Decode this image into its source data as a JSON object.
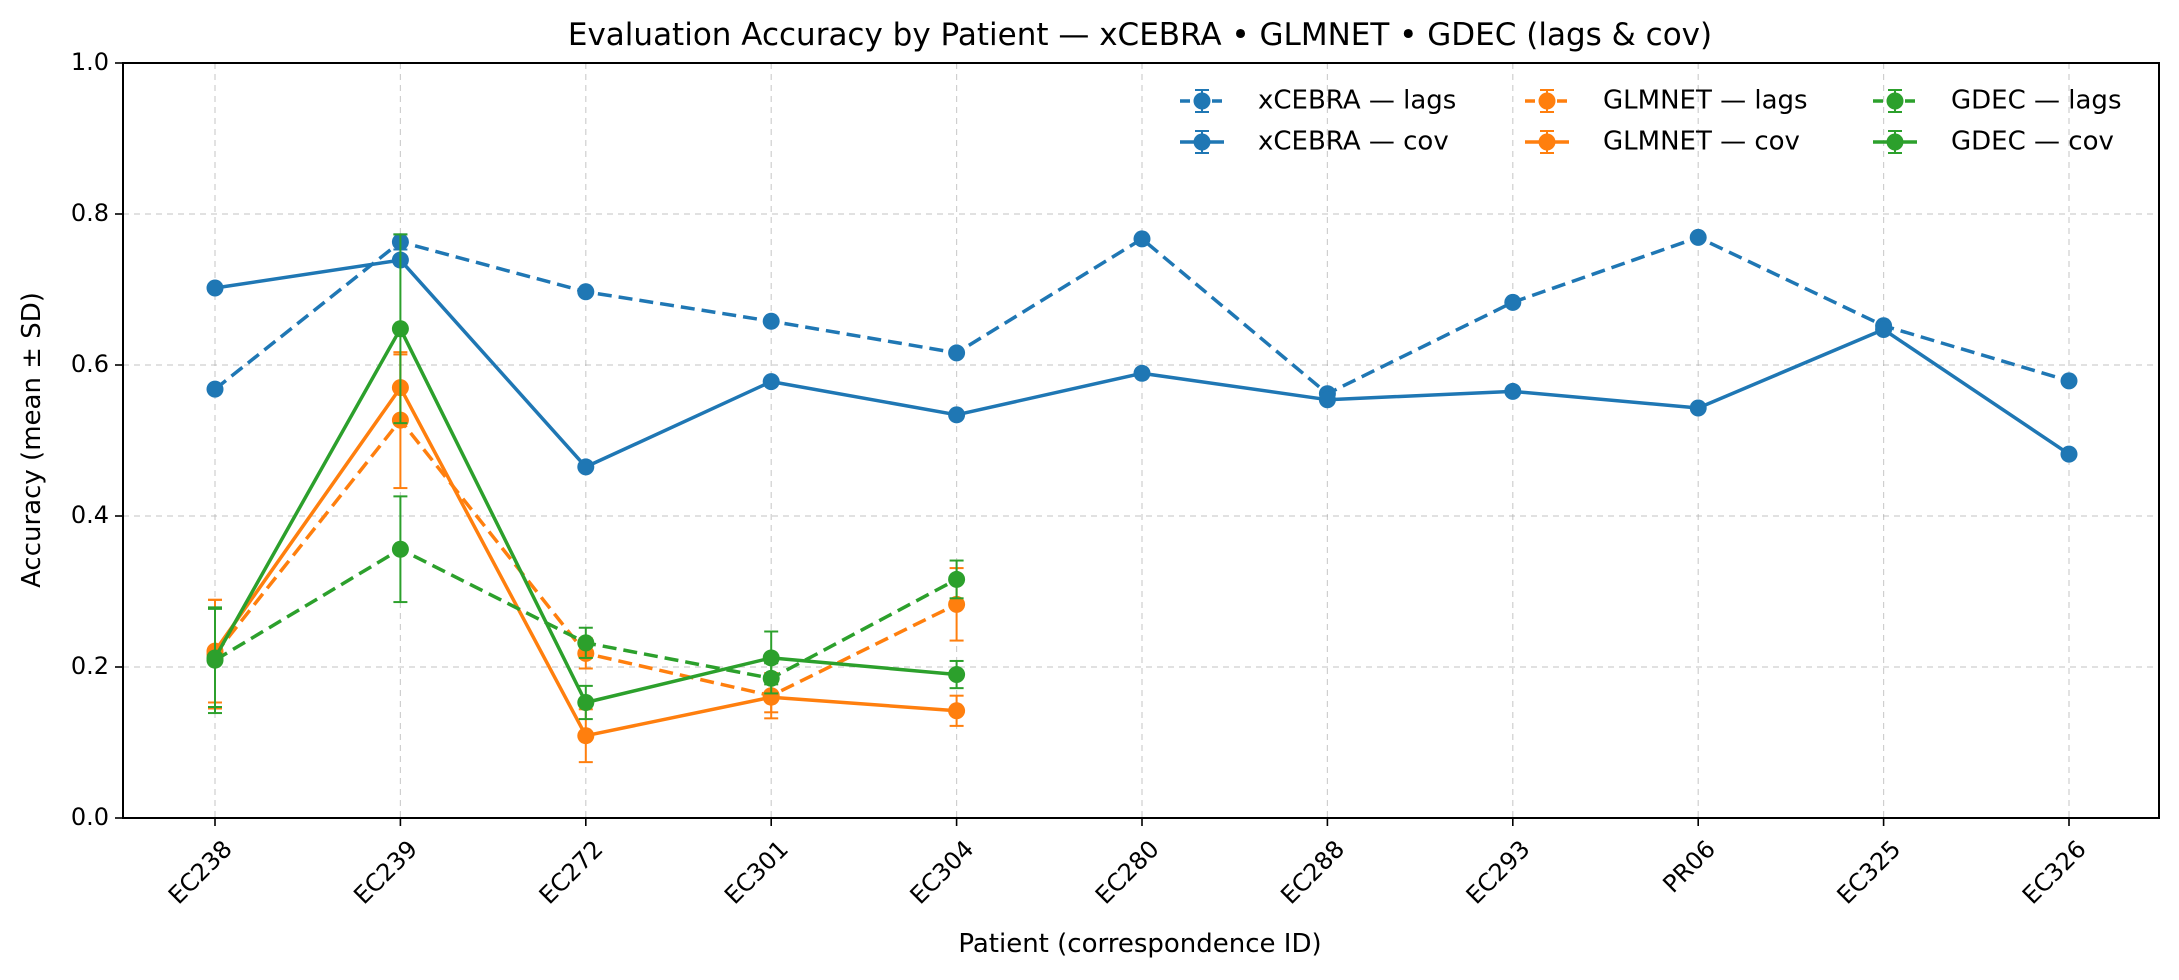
{
  "chart_data": {
    "type": "line",
    "title": "Evaluation Accuracy by Patient — xCEBRA • GLMNET • GDEC (lags & cov)",
    "xlabel": "Patient (correspondence ID)",
    "ylabel": "Accuracy (mean ± SD)",
    "categories": [
      "EC238",
      "EC239",
      "EC272",
      "EC301",
      "EC304",
      "EC280",
      "EC288",
      "EC293",
      "PR06",
      "EC325",
      "EC326"
    ],
    "ylim": [
      0,
      1.0
    ],
    "yticks": [
      "0.0",
      "0.2",
      "0.4",
      "0.6",
      "0.8",
      "1.0"
    ],
    "grid": true,
    "legend_position": "top-right",
    "series": [
      {
        "name": "xCEBRA — lags",
        "color": "#1f77b4",
        "style": "dashed",
        "values": [
          0.568,
          0.763,
          0.697,
          0.658,
          0.616,
          0.767,
          0.562,
          0.683,
          0.769,
          0.652,
          0.579
        ],
        "errors": [
          0,
          0.01,
          0,
          0,
          0,
          0,
          0,
          0,
          0,
          0,
          0
        ]
      },
      {
        "name": "xCEBRA — cov",
        "color": "#1f77b4",
        "style": "solid",
        "values": [
          0.702,
          0.739,
          0.465,
          0.578,
          0.534,
          0.589,
          0.554,
          0.565,
          0.543,
          0.647,
          0.482
        ],
        "errors": [
          0,
          0,
          0,
          0,
          0,
          0,
          0,
          0,
          0,
          0,
          0
        ]
      },
      {
        "name": "GLMNET — lags",
        "color": "#ff7f0e",
        "style": "dashed",
        "values": [
          0.217,
          0.527,
          0.218,
          0.162,
          0.283,
          null,
          null,
          null,
          null,
          null,
          null
        ],
        "errors": [
          0.072,
          0.09,
          0.02,
          0.03,
          0.048,
          null,
          null,
          null,
          null,
          null,
          null
        ]
      },
      {
        "name": "GLMNET — cov",
        "color": "#ff7f0e",
        "style": "solid",
        "values": [
          0.221,
          0.57,
          0.109,
          0.16,
          0.142,
          null,
          null,
          null,
          null,
          null,
          null
        ],
        "errors": [
          0.068,
          0.044,
          0.035,
          0.02,
          0.02,
          null,
          null,
          null,
          null,
          null,
          null
        ]
      },
      {
        "name": "GDEC — lags",
        "color": "#2ca02c",
        "style": "dashed",
        "values": [
          0.209,
          0.356,
          0.232,
          0.185,
          0.316,
          null,
          null,
          null,
          null,
          null,
          null
        ],
        "errors": [
          0.07,
          0.07,
          0.02,
          0.02,
          0.025,
          null,
          null,
          null,
          null,
          null,
          null
        ]
      },
      {
        "name": "GDEC — cov",
        "color": "#2ca02c",
        "style": "solid",
        "values": [
          0.212,
          0.648,
          0.153,
          0.212,
          0.19,
          null,
          null,
          null,
          null,
          null,
          null
        ],
        "errors": [
          0.065,
          0.125,
          0.022,
          0.035,
          0.018,
          null,
          null,
          null,
          null,
          null,
          null
        ]
      }
    ]
  }
}
